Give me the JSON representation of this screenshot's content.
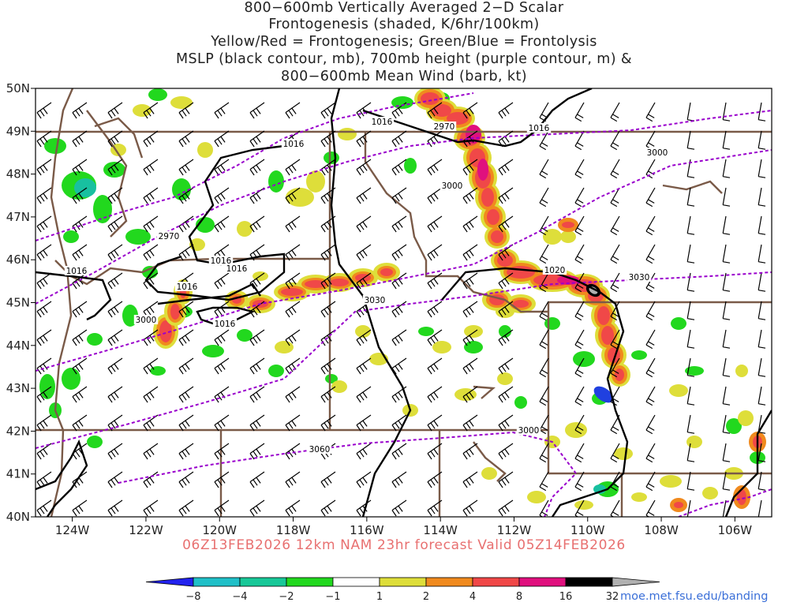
{
  "title_lines": [
    "800−600mb Vertically Averaged 2−D Scalar",
    "Frontogenesis (shaded, K/6hr/100km)",
    "Yellow/Red = Frontogenesis;  Green/Blue = Frontolysis",
    "MSLP (black contour, mb), 700mb height (purple contour, m) &",
    "800−600mb Mean Wind (barb, kt)"
  ],
  "footer": "06Z13FEB2026 12km NAM 23hr forecast Valid 05Z14FEB2026",
  "credit": "moe.met.fsu.edu/banding",
  "map": {
    "lon_range": [
      -125,
      -105
    ],
    "lat_range": [
      40,
      50
    ],
    "lon_ticks": [
      "124W",
      "122W",
      "120W",
      "118W",
      "116W",
      "114W",
      "112W",
      "110W",
      "108W",
      "106W"
    ],
    "lat_ticks": [
      "50N",
      "49N",
      "48N",
      "47N",
      "46N",
      "45N",
      "44N",
      "43N",
      "42N",
      "41N",
      "40N"
    ],
    "mslp_labels": [
      "1016",
      "1016",
      "1016",
      "1016",
      "1016",
      "1016",
      "1016",
      "1016",
      "1020"
    ],
    "height_labels": [
      "2970",
      "2970",
      "3000",
      "3000",
      "3000",
      "3030",
      "3030",
      "3060",
      "3000"
    ],
    "colors": {
      "mslp": "#000000",
      "height": "#9900cc",
      "borders": "#7a5a48",
      "frontogenesis_yellow": "#dede3a",
      "frontogenesis_orange": "#f08a1e",
      "frontogenesis_red": "#f04848",
      "frontogenesis_magenta": "#e0107e",
      "frontolysis_green": "#22d81e",
      "frontolysis_teal": "#18c0a0",
      "frontolysis_blue": "#2040e0"
    }
  },
  "colorbar": {
    "labels": [
      "−8",
      "−4",
      "−2",
      "−1",
      "1",
      "2",
      "4",
      "8",
      "16",
      "32"
    ],
    "colors": [
      "#2222ee",
      "#20c0c8",
      "#18c898",
      "#22d81e",
      "#ffffff",
      "#dede3a",
      "#f08a1e",
      "#f04848",
      "#e0107e",
      "#000000",
      "#b0b0b0"
    ]
  }
}
